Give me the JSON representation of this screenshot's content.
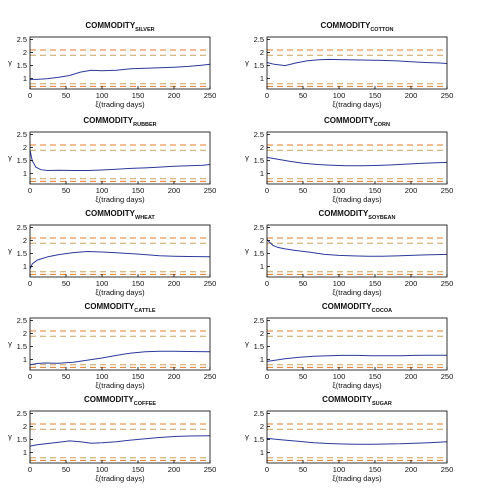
{
  "colors": {
    "series": "#2b3a9c",
    "band_outer": "#e07b2a",
    "band_inner": "#c9a25c",
    "axes": "#000000"
  },
  "chart_data": [
    {
      "type": "line",
      "title": "COMMODITY",
      "title_subscript": "SILVER",
      "xlabel": "ξ(trading days)",
      "ylabel": "γ",
      "xlim": [
        0,
        250
      ],
      "ylim": [
        0.6,
        2.6
      ],
      "xticks": [
        "0",
        "50",
        "100",
        "150",
        "200",
        "250"
      ],
      "yticks": [
        "1",
        "1.5",
        "2",
        "2.5"
      ],
      "reference_lines": [
        0.7,
        0.8,
        1.9,
        2.1
      ],
      "x": [
        0,
        10,
        25,
        40,
        55,
        70,
        85,
        100,
        120,
        140,
        160,
        180,
        200,
        220,
        240,
        250
      ],
      "y": [
        0.97,
        0.97,
        1.0,
        1.05,
        1.12,
        1.25,
        1.32,
        1.3,
        1.32,
        1.38,
        1.4,
        1.42,
        1.44,
        1.47,
        1.52,
        1.55
      ]
    },
    {
      "type": "line",
      "title": "COMMODITY",
      "title_subscript": "COTTON",
      "xlabel": "ξ(trading days)",
      "ylabel": "γ",
      "xlim": [
        0,
        250
      ],
      "ylim": [
        0.6,
        2.6
      ],
      "xticks": [
        "0",
        "50",
        "100",
        "150",
        "200",
        "250"
      ],
      "yticks": [
        "1",
        "1.5",
        "2",
        "2.5"
      ],
      "reference_lines": [
        0.7,
        0.8,
        1.9,
        2.1
      ],
      "x": [
        0,
        10,
        25,
        40,
        55,
        70,
        85,
        100,
        120,
        140,
        160,
        180,
        200,
        220,
        240,
        250
      ],
      "y": [
        1.62,
        1.55,
        1.5,
        1.6,
        1.68,
        1.72,
        1.74,
        1.73,
        1.72,
        1.71,
        1.7,
        1.68,
        1.65,
        1.62,
        1.6,
        1.58
      ]
    },
    {
      "type": "line",
      "title": "COMMODITY",
      "title_subscript": "RUBBER",
      "xlabel": "ξ(trading days)",
      "ylabel": "γ",
      "xlim": [
        0,
        250
      ],
      "ylim": [
        0.6,
        2.6
      ],
      "xticks": [
        "0",
        "50",
        "100",
        "150",
        "200",
        "250"
      ],
      "yticks": [
        "1",
        "1.5",
        "2",
        "2.5"
      ],
      "reference_lines": [
        0.7,
        0.8,
        1.9,
        2.1
      ],
      "x": [
        0,
        3,
        8,
        15,
        25,
        40,
        60,
        80,
        100,
        120,
        140,
        160,
        180,
        200,
        220,
        240,
        250
      ],
      "y": [
        1.9,
        1.5,
        1.25,
        1.15,
        1.12,
        1.13,
        1.12,
        1.12,
        1.14,
        1.17,
        1.2,
        1.22,
        1.25,
        1.28,
        1.3,
        1.32,
        1.35
      ]
    },
    {
      "type": "line",
      "title": "COMMODITY",
      "title_subscript": "CORN",
      "xlabel": "ξ(trading days)",
      "ylabel": "γ",
      "xlim": [
        0,
        250
      ],
      "ylim": [
        0.6,
        2.6
      ],
      "xticks": [
        "0",
        "50",
        "100",
        "150",
        "200",
        "250"
      ],
      "yticks": [
        "1",
        "1.5",
        "2",
        "2.5"
      ],
      "reference_lines": [
        0.7,
        0.8,
        1.9,
        2.1
      ],
      "x": [
        0,
        5,
        15,
        30,
        50,
        70,
        90,
        110,
        130,
        150,
        170,
        190,
        210,
        230,
        250
      ],
      "y": [
        1.62,
        1.6,
        1.55,
        1.48,
        1.4,
        1.35,
        1.32,
        1.3,
        1.3,
        1.31,
        1.33,
        1.36,
        1.39,
        1.41,
        1.43
      ]
    },
    {
      "type": "line",
      "title": "COMMODITY",
      "title_subscript": "WHEAT",
      "xlabel": "ξ(trading days)",
      "ylabel": "γ",
      "xlim": [
        0,
        250
      ],
      "ylim": [
        0.6,
        2.6
      ],
      "xticks": [
        "0",
        "50",
        "100",
        "150",
        "200",
        "250"
      ],
      "yticks": [
        "1",
        "1.5",
        "2",
        "2.5"
      ],
      "reference_lines": [
        0.7,
        0.8,
        1.9,
        2.1
      ],
      "x": [
        0,
        3,
        10,
        25,
        40,
        60,
        80,
        100,
        120,
        140,
        160,
        180,
        200,
        220,
        250
      ],
      "y": [
        0.9,
        1.1,
        1.25,
        1.38,
        1.46,
        1.54,
        1.58,
        1.56,
        1.53,
        1.5,
        1.46,
        1.42,
        1.4,
        1.39,
        1.38
      ]
    },
    {
      "type": "line",
      "title": "COMMODITY",
      "title_subscript": "SOYBEAN",
      "xlabel": "ξ(trading days)",
      "ylabel": "γ",
      "xlim": [
        0,
        250
      ],
      "ylim": [
        0.6,
        2.6
      ],
      "xticks": [
        "0",
        "50",
        "100",
        "150",
        "200",
        "250"
      ],
      "yticks": [
        "1",
        "1.5",
        "2",
        "2.5"
      ],
      "reference_lines": [
        0.7,
        0.8,
        1.9,
        2.1
      ],
      "x": [
        0,
        3,
        8,
        15,
        25,
        40,
        60,
        80,
        100,
        120,
        140,
        160,
        180,
        200,
        220,
        250
      ],
      "y": [
        2.05,
        1.95,
        1.82,
        1.74,
        1.68,
        1.62,
        1.55,
        1.47,
        1.43,
        1.41,
        1.4,
        1.4,
        1.41,
        1.43,
        1.45,
        1.47
      ]
    },
    {
      "type": "line",
      "title": "COMMODITY",
      "title_subscript": "CATTLE",
      "xlabel": "ξ(trading days)",
      "ylabel": "γ",
      "xlim": [
        0,
        250
      ],
      "ylim": [
        0.6,
        2.6
      ],
      "xticks": [
        "0",
        "50",
        "100",
        "150",
        "200",
        "250"
      ],
      "yticks": [
        "1",
        "1.5",
        "2",
        "2.5"
      ],
      "reference_lines": [
        0.7,
        0.8,
        1.9,
        2.1
      ],
      "x": [
        0,
        10,
        20,
        40,
        60,
        80,
        100,
        120,
        140,
        160,
        180,
        200,
        220,
        250
      ],
      "y": [
        0.8,
        0.85,
        0.87,
        0.86,
        0.9,
        0.98,
        1.06,
        1.16,
        1.25,
        1.3,
        1.32,
        1.32,
        1.31,
        1.3
      ]
    },
    {
      "type": "line",
      "title": "COMMODITY",
      "title_subscript": "COCOA",
      "xlabel": "ξ(trading days)",
      "ylabel": "γ",
      "xlim": [
        0,
        250
      ],
      "ylim": [
        0.6,
        2.6
      ],
      "xticks": [
        "0",
        "50",
        "100",
        "150",
        "200",
        "250"
      ],
      "yticks": [
        "1",
        "1.5",
        "2",
        "2.5"
      ],
      "reference_lines": [
        0.7,
        0.8,
        1.9,
        2.1
      ],
      "x": [
        0,
        10,
        25,
        45,
        65,
        85,
        105,
        125,
        145,
        165,
        185,
        205,
        225,
        250
      ],
      "y": [
        0.93,
        0.97,
        1.03,
        1.09,
        1.13,
        1.15,
        1.16,
        1.16,
        1.15,
        1.15,
        1.15,
        1.16,
        1.17,
        1.17
      ]
    },
    {
      "type": "line",
      "title": "COMMODITY",
      "title_subscript": "COFFEE",
      "xlabel": "ξ(trading days)",
      "ylabel": "γ",
      "xlim": [
        0,
        250
      ],
      "ylim": [
        0.6,
        2.6
      ],
      "xticks": [
        "0",
        "50",
        "100",
        "150",
        "200",
        "250"
      ],
      "yticks": [
        "1",
        "1.5",
        "2",
        "2.5"
      ],
      "reference_lines": [
        0.7,
        0.8,
        1.9,
        2.1
      ],
      "x": [
        0,
        10,
        25,
        40,
        55,
        70,
        85,
        100,
        120,
        140,
        160,
        180,
        200,
        220,
        250
      ],
      "y": [
        1.25,
        1.3,
        1.35,
        1.4,
        1.45,
        1.42,
        1.36,
        1.38,
        1.42,
        1.48,
        1.53,
        1.58,
        1.62,
        1.64,
        1.65
      ]
    },
    {
      "type": "line",
      "title": "COMMODITY",
      "title_subscript": "SUGAR",
      "xlabel": "ξ(trading days)",
      "ylabel": "γ",
      "xlim": [
        0,
        250
      ],
      "ylim": [
        0.6,
        2.6
      ],
      "xticks": [
        "0",
        "50",
        "100",
        "150",
        "200",
        "250"
      ],
      "yticks": [
        "1",
        "1.5",
        "2",
        "2.5"
      ],
      "reference_lines": [
        0.7,
        0.8,
        1.9,
        2.1
      ],
      "x": [
        0,
        10,
        25,
        45,
        65,
        85,
        105,
        125,
        145,
        165,
        185,
        205,
        225,
        250
      ],
      "y": [
        1.55,
        1.52,
        1.48,
        1.43,
        1.38,
        1.35,
        1.33,
        1.32,
        1.32,
        1.33,
        1.34,
        1.36,
        1.38,
        1.42
      ]
    }
  ]
}
